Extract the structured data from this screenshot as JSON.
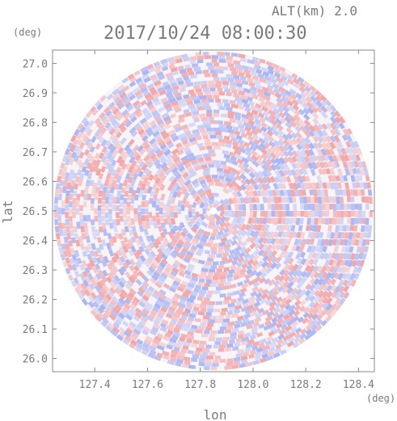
{
  "header": {
    "altitude_label": "ALT(km) 2.0",
    "timestamp": "2017/10/24 08:00:30"
  },
  "chart_data": {
    "type": "heatmap",
    "title": "2017/10/24 08:00:30",
    "subtitle": "ALT(km) 2.0",
    "xlabel": "lon",
    "ylabel": "lat",
    "x_unit": "(deg)",
    "y_unit": "(deg)",
    "xlim": [
      127.24,
      128.46
    ],
    "ylim": [
      25.955,
      27.045
    ],
    "x_ticks": [
      {
        "value": 127.4,
        "label": "127.4"
      },
      {
        "value": 127.6,
        "label": "127.6"
      },
      {
        "value": 127.8,
        "label": "127.8"
      },
      {
        "value": 128.0,
        "label": "128.0"
      },
      {
        "value": 128.2,
        "label": "128.2"
      },
      {
        "value": 128.4,
        "label": "128.4"
      }
    ],
    "y_ticks": [
      {
        "value": 27.0,
        "label": "27.0"
      },
      {
        "value": 26.9,
        "label": "26.9"
      },
      {
        "value": 26.8,
        "label": "26.8"
      },
      {
        "value": 26.7,
        "label": "26.7"
      },
      {
        "value": 26.6,
        "label": "26.6"
      },
      {
        "value": 26.5,
        "label": "26.5"
      },
      {
        "value": 26.4,
        "label": "26.4"
      },
      {
        "value": 26.3,
        "label": "26.3"
      },
      {
        "value": 26.2,
        "label": "26.2"
      },
      {
        "value": 26.1,
        "label": "26.1"
      },
      {
        "value": 26.0,
        "label": "26.0"
      }
    ],
    "radar_center": {
      "lon": 127.85,
      "lat": 26.5
    },
    "radar_radius_deg_lat": 0.54,
    "colors": {
      "positive": "#f08a8a",
      "negative": "#8f9ff0",
      "neutral": "#f7f4f8",
      "axis": "#888888",
      "text": "#7a7a7a"
    }
  }
}
